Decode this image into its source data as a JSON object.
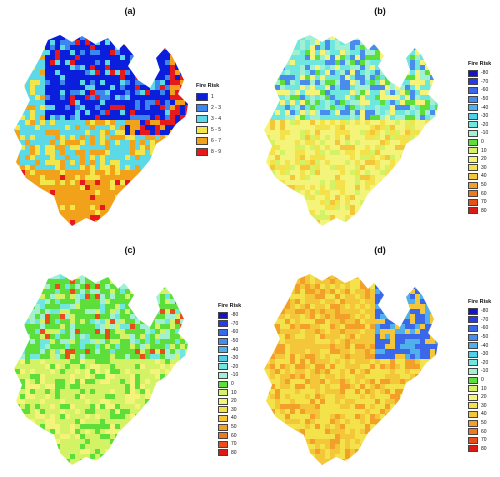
{
  "panels": [
    {
      "label": "(a)",
      "legend_title": "Fire Risk",
      "legend": [
        {
          "label": "1",
          "color": "#0a1edc"
        },
        {
          "label": "2 - 3",
          "color": "#3d86f0"
        },
        {
          "label": "3 - 4",
          "color": "#5cd9e6"
        },
        {
          "label": "5 - 5",
          "color": "#f2e64a"
        },
        {
          "label": "6 - 7",
          "color": "#f2a21a"
        },
        {
          "label": "8 - 9",
          "color": "#e61a1a"
        }
      ],
      "dominant": "mixed-a"
    },
    {
      "label": "(b)",
      "legend_title": "Fire Risk",
      "legend": [
        {
          "label": "-80",
          "color": "#1414c8"
        },
        {
          "label": "-70",
          "color": "#2a3be0"
        },
        {
          "label": "-60",
          "color": "#3a68e8"
        },
        {
          "label": "-50",
          "color": "#4a8cec"
        },
        {
          "label": "-40",
          "color": "#4fb0ec"
        },
        {
          "label": "-30",
          "color": "#4fd0ea"
        },
        {
          "label": "-20",
          "color": "#6fe6de"
        },
        {
          "label": "-10",
          "color": "#a2f0d2"
        },
        {
          "label": "0",
          "color": "#5ede3a"
        },
        {
          "label": "10",
          "color": "#d4f266"
        },
        {
          "label": "20",
          "color": "#f4f47a"
        },
        {
          "label": "30",
          "color": "#f4e24a"
        },
        {
          "label": "40",
          "color": "#f4c63a"
        },
        {
          "label": "50",
          "color": "#f2a02a"
        },
        {
          "label": "60",
          "color": "#ee7a20"
        },
        {
          "label": "70",
          "color": "#e84e1a"
        },
        {
          "label": "80",
          "color": "#dc1a14"
        }
      ],
      "dominant": "yellow-b"
    },
    {
      "label": "(c)",
      "legend_title": "Fire Risk",
      "legend": [
        {
          "label": "-80",
          "color": "#1414c8"
        },
        {
          "label": "-70",
          "color": "#2a3be0"
        },
        {
          "label": "-60",
          "color": "#3a68e8"
        },
        {
          "label": "-50",
          "color": "#4a8cec"
        },
        {
          "label": "-40",
          "color": "#4fb0ec"
        },
        {
          "label": "-30",
          "color": "#4fd0ea"
        },
        {
          "label": "-20",
          "color": "#6fe6de"
        },
        {
          "label": "-10",
          "color": "#a2f0d2"
        },
        {
          "label": "0",
          "color": "#5ede3a"
        },
        {
          "label": "10",
          "color": "#d4f266"
        },
        {
          "label": "20",
          "color": "#f4f47a"
        },
        {
          "label": "30",
          "color": "#f4e24a"
        },
        {
          "label": "40",
          "color": "#f4c63a"
        },
        {
          "label": "50",
          "color": "#f2a02a"
        },
        {
          "label": "60",
          "color": "#ee7a20"
        },
        {
          "label": "70",
          "color": "#e84e1a"
        },
        {
          "label": "80",
          "color": "#dc1a14"
        }
      ],
      "dominant": "green-c"
    },
    {
      "label": "(d)",
      "legend_title": "Fire Risk",
      "legend": [
        {
          "label": "-80",
          "color": "#1414c8"
        },
        {
          "label": "-70",
          "color": "#2a3be0"
        },
        {
          "label": "-60",
          "color": "#3a68e8"
        },
        {
          "label": "-50",
          "color": "#4a8cec"
        },
        {
          "label": "-40",
          "color": "#4fb0ec"
        },
        {
          "label": "-30",
          "color": "#4fd0ea"
        },
        {
          "label": "-20",
          "color": "#6fe6de"
        },
        {
          "label": "-10",
          "color": "#a2f0d2"
        },
        {
          "label": "0",
          "color": "#5ede3a"
        },
        {
          "label": "10",
          "color": "#d4f266"
        },
        {
          "label": "20",
          "color": "#f4f47a"
        },
        {
          "label": "30",
          "color": "#f4e24a"
        },
        {
          "label": "40",
          "color": "#f4c63a"
        },
        {
          "label": "50",
          "color": "#f2a02a"
        },
        {
          "label": "60",
          "color": "#ee7a20"
        },
        {
          "label": "70",
          "color": "#e84e1a"
        },
        {
          "label": "80",
          "color": "#dc1a14"
        }
      ],
      "dominant": "orange-d"
    }
  ]
}
